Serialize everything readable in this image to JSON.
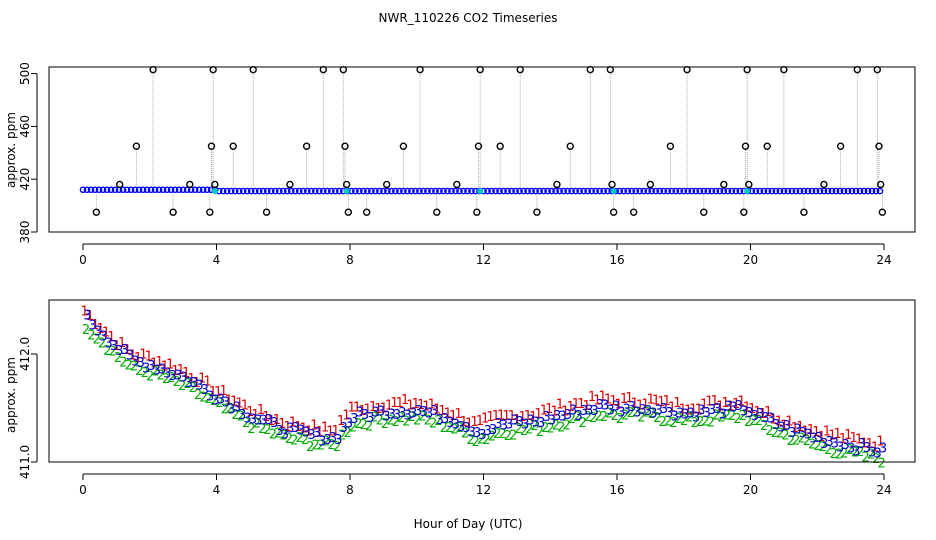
{
  "title": "NWR_110226  CO2 Timeseries",
  "xlabel": "Hour of Day (UTC)",
  "chart_data": [
    {
      "type": "scatter",
      "panel": "top",
      "title": "",
      "xlabel": "",
      "ylabel": "approx. ppm",
      "xlim": [
        0,
        24
      ],
      "ylim": [
        380,
        505
      ],
      "x_ticks": [
        0,
        4,
        8,
        12,
        16,
        20,
        24
      ],
      "y_ticks": [
        380,
        420,
        460,
        500
      ],
      "baseline_value": 411,
      "spike_series": {
        "name": "open circles",
        "x": [
          0.4,
          1.1,
          1.6,
          2.1,
          2.7,
          3.2,
          3.8,
          3.85,
          3.9,
          3.95,
          4.5,
          5.1,
          5.5,
          6.2,
          6.7,
          7.2,
          7.8,
          7.85,
          7.9,
          7.95,
          8.5,
          9.1,
          9.6,
          10.1,
          10.6,
          11.2,
          11.8,
          11.85,
          11.9,
          12.5,
          13.1,
          13.6,
          14.2,
          14.6,
          15.2,
          15.8,
          15.85,
          15.9,
          16.5,
          17.0,
          17.6,
          18.1,
          18.6,
          19.2,
          19.8,
          19.85,
          19.9,
          19.95,
          20.5,
          21.0,
          21.6,
          22.2,
          22.7,
          23.2,
          23.8,
          23.85,
          23.9,
          23.95
        ],
        "y": [
          395,
          416,
          445,
          503,
          395,
          416,
          395,
          445,
          503,
          416,
          445,
          503,
          395,
          416,
          445,
          503,
          503,
          445,
          416,
          395,
          395,
          416,
          445,
          503,
          395,
          416,
          395,
          445,
          503,
          445,
          503,
          395,
          416,
          445,
          503,
          503,
          416,
          395,
          395,
          416,
          445,
          503,
          395,
          416,
          395,
          445,
          503,
          416,
          445,
          503,
          395,
          416,
          445,
          503,
          503,
          445,
          416,
          395
        ]
      },
      "marker_series": [
        {
          "name": "blue circles",
          "color": "#0000ff"
        },
        {
          "name": "cyan highlights",
          "color": "#00c8c8",
          "x": [
            3.95,
            7.9,
            11.9,
            15.9,
            19.9
          ]
        }
      ]
    },
    {
      "type": "scatter",
      "panel": "bottom",
      "xlabel": "",
      "ylabel": "approx. ppm",
      "xlim": [
        0,
        24
      ],
      "ylim": [
        411.0,
        412.5
      ],
      "x_ticks": [
        0,
        4,
        8,
        12,
        16,
        20,
        24
      ],
      "y_ticks": [
        411.0,
        412.0
      ],
      "series": [
        {
          "name": "1",
          "label": "1",
          "color": "#dd0000",
          "offset": 0.07
        },
        {
          "name": "2",
          "label": "2",
          "color": "#00aa00",
          "offset": -0.07
        },
        {
          "name": "3",
          "label": "3",
          "color": "#0000cc",
          "offset": 0.0
        }
      ],
      "trend_x": [
        0,
        0.5,
        1.0,
        1.5,
        2.0,
        3.0,
        4.0,
        5.0,
        6.0,
        7.0,
        7.5,
        8.0,
        9.0,
        10.0,
        11.0,
        11.8,
        12.5,
        13.5,
        14.5,
        15.5,
        16.0,
        17.0,
        18.0,
        19.0,
        19.8,
        20.0,
        21.0,
        22.0,
        23.0,
        23.9
      ],
      "trend_y": [
        412.35,
        412.2,
        412.05,
        411.93,
        411.9,
        411.78,
        411.6,
        411.42,
        411.3,
        411.24,
        411.22,
        411.42,
        411.47,
        411.48,
        411.4,
        411.28,
        411.35,
        411.38,
        411.45,
        411.52,
        411.5,
        411.5,
        411.45,
        411.48,
        411.5,
        411.45,
        411.32,
        411.22,
        411.15,
        411.1
      ]
    }
  ]
}
